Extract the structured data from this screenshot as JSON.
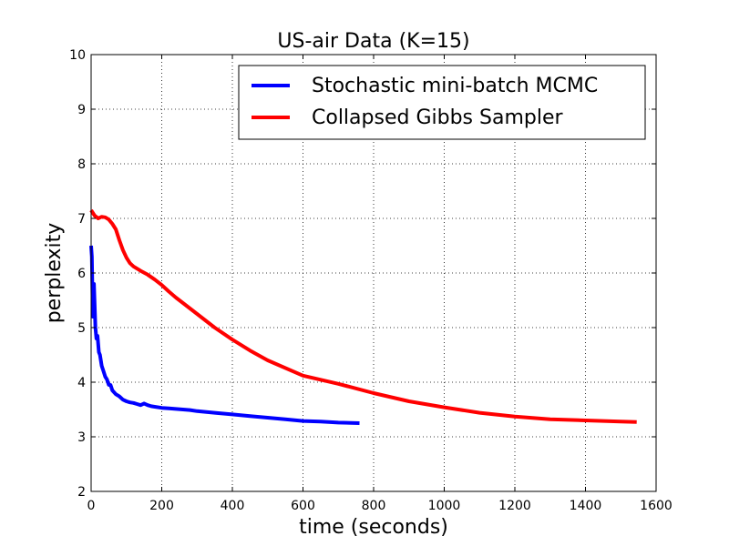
{
  "chart_data": {
    "type": "line",
    "title": "US-air Data (K=15)",
    "xlabel": "time (seconds)",
    "ylabel": "perplexity",
    "xlim": [
      0,
      1600
    ],
    "ylim": [
      2,
      10
    ],
    "xticks": [
      0,
      200,
      400,
      600,
      800,
      1000,
      1200,
      1400,
      1600
    ],
    "yticks": [
      2,
      3,
      4,
      5,
      6,
      7,
      8,
      9,
      10
    ],
    "grid": true,
    "legend_position": "top-right",
    "series": [
      {
        "name": "Stochastic mini-batch MCMC",
        "color": "#0000ff",
        "x": [
          0,
          2,
          5,
          8,
          12,
          15,
          18,
          22,
          25,
          30,
          35,
          40,
          45,
          50,
          55,
          60,
          70,
          80,
          90,
          100,
          110,
          120,
          130,
          140,
          150,
          160,
          170,
          180,
          200,
          220,
          240,
          260,
          280,
          300,
          350,
          400,
          450,
          500,
          550,
          600,
          650,
          700,
          760
        ],
        "y": [
          6.5,
          6.3,
          5.2,
          5.8,
          5.0,
          4.8,
          4.85,
          4.55,
          4.5,
          4.3,
          4.2,
          4.1,
          4.05,
          3.95,
          3.95,
          3.85,
          3.78,
          3.74,
          3.68,
          3.65,
          3.63,
          3.62,
          3.6,
          3.58,
          3.61,
          3.58,
          3.56,
          3.55,
          3.53,
          3.52,
          3.51,
          3.5,
          3.49,
          3.47,
          3.44,
          3.41,
          3.38,
          3.35,
          3.32,
          3.29,
          3.28,
          3.26,
          3.25
        ]
      },
      {
        "name": "Collapsed Gibbs Sampler",
        "color": "#ff0000",
        "x": [
          0,
          10,
          20,
          30,
          40,
          50,
          60,
          70,
          80,
          90,
          100,
          110,
          120,
          130,
          140,
          160,
          180,
          200,
          220,
          240,
          260,
          300,
          350,
          400,
          450,
          500,
          600,
          700,
          800,
          900,
          1000,
          1100,
          1200,
          1300,
          1400,
          1500,
          1545
        ],
        "y": [
          7.15,
          7.05,
          7.0,
          7.03,
          7.02,
          6.98,
          6.9,
          6.8,
          6.6,
          6.42,
          6.28,
          6.18,
          6.12,
          6.08,
          6.04,
          5.97,
          5.88,
          5.78,
          5.66,
          5.55,
          5.45,
          5.25,
          5.0,
          4.78,
          4.58,
          4.4,
          4.12,
          3.97,
          3.8,
          3.65,
          3.54,
          3.44,
          3.37,
          3.32,
          3.3,
          3.28,
          3.27
        ]
      }
    ]
  }
}
